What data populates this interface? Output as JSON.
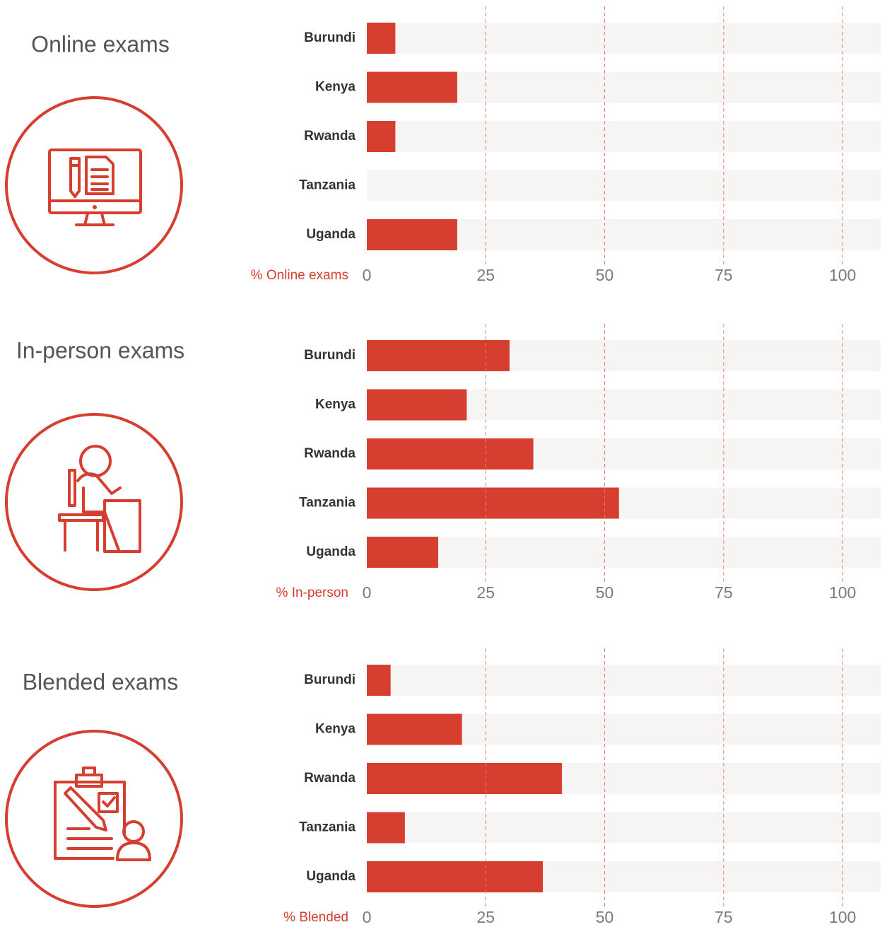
{
  "chart_data": [
    {
      "type": "bar",
      "orientation": "horizontal",
      "title": "Online exams",
      "x_label": "% Online exams",
      "categories": [
        "Burundi",
        "Kenya",
        "Rwanda",
        "Tanzania",
        "Uganda"
      ],
      "values": [
        6,
        19,
        6,
        0,
        19
      ],
      "color": "#d63e2f",
      "track_color": "#f7f5f4",
      "xlim": [
        0,
        108
      ],
      "xticks": [
        0,
        25,
        50,
        75,
        100
      ],
      "grid": true
    },
    {
      "type": "bar",
      "orientation": "horizontal",
      "title": "In-person exams",
      "x_label": "% In-person",
      "categories": [
        "Burundi",
        "Kenya",
        "Rwanda",
        "Tanzania",
        "Uganda"
      ],
      "values": [
        30,
        21,
        35,
        53,
        15
      ],
      "color": "#d63e2f",
      "track_color": "#f7f5f4",
      "xlim": [
        0,
        108
      ],
      "xticks": [
        0,
        25,
        50,
        75,
        100
      ],
      "grid": true
    },
    {
      "type": "bar",
      "orientation": "horizontal",
      "title": "Blended exams",
      "x_label": "% Blended",
      "categories": [
        "Burundi",
        "Kenya",
        "Rwanda",
        "Tanzania",
        "Uganda"
      ],
      "values": [
        5,
        20,
        41,
        8,
        37
      ],
      "color": "#d63e2f",
      "track_color": "#f7f5f4",
      "xlim": [
        0,
        108
      ],
      "xticks": [
        0,
        25,
        50,
        75,
        100
      ],
      "grid": true
    }
  ]
}
